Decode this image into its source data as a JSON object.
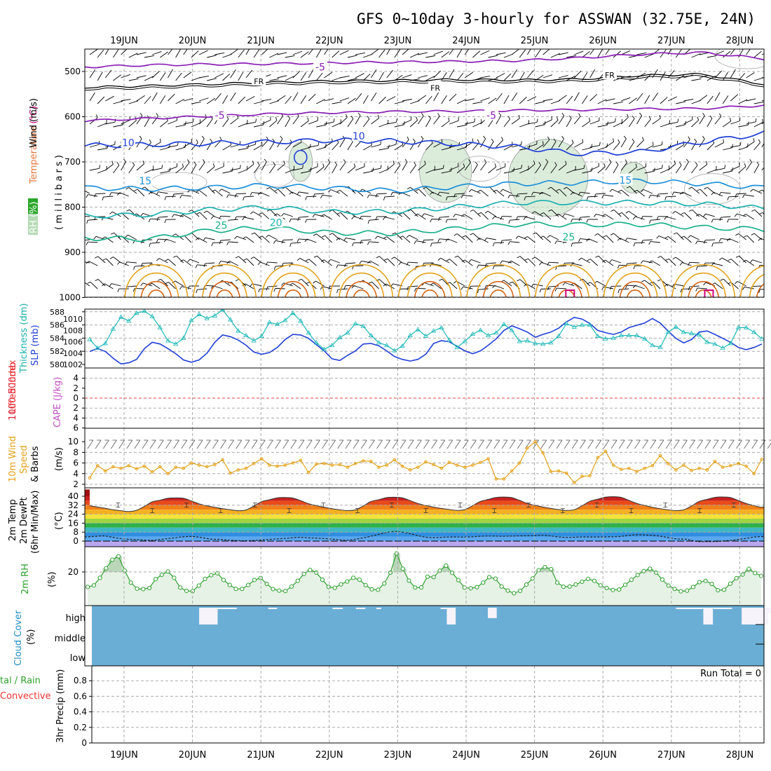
{
  "title": "GFS 0~10day 3-hourly for ASSWAN (32.75E, 24N)",
  "days": [
    "19JUN",
    "20JUN",
    "21JUN",
    "22JUN",
    "23JUN",
    "24JUN",
    "25JUN",
    "26JUN",
    "27JUN",
    "28JUN"
  ],
  "colors": {
    "purple": "#8a1fb5",
    "black": "#000000",
    "blue": "#1f3fd6",
    "lightblue": "#1e90d8",
    "teal": "#1cb0b0",
    "green": "#19b08a",
    "orange": "#e3a21a",
    "darkorange": "#d76514",
    "magenta": "#d4007a",
    "cloud": "#6aaed6",
    "rhfill": "#e8f3e8",
    "rhline": "#2ea02e"
  },
  "panels": {
    "upper_air": {
      "labels": {
        "rh": "RH (%)",
        "temperature": "Temperature",
        "celsius": "(°C)",
        "wind": "Wind (m/s)",
        "mb": "( m i l l i b a r s )"
      },
      "pressure_ticks": [
        500,
        600,
        700,
        800,
        900,
        1000
      ],
      "contours": [
        {
          "label": "-5",
          "color": "purple",
          "mb": [
            490,
            486,
            484,
            483,
            481,
            479,
            478,
            476,
            470,
            462,
            458,
            472
          ]
        },
        {
          "label": "FR",
          "color": "black",
          "mb": [
            535,
            532,
            528,
            524,
            521,
            520,
            518,
            519,
            517,
            509,
            506,
            528
          ]
        },
        {
          "label": "-5",
          "color": "purple",
          "mb": [
            609,
            604,
            599,
            594,
            591,
            589,
            588,
            586,
            585,
            583,
            582,
            575
          ]
        },
        {
          "label": "10",
          "color": "blue",
          "mb": [
            664,
            662,
            659,
            656,
            652,
            654,
            660,
            667,
            682,
            678,
            656,
            637
          ]
        },
        {
          "label": "15",
          "color": "lightblue",
          "mb": [
            757,
            760,
            757,
            752,
            758,
            764,
            755,
            748,
            746,
            742,
            748,
            757
          ]
        },
        {
          "label": "20",
          "color": "teal",
          "mb": [
            820,
            817,
            806,
            800,
            811,
            810,
            800,
            790,
            790,
            790,
            793,
            803
          ]
        },
        {
          "label": "25",
          "color": "green",
          "mb": [
            868,
            871,
            852,
            846,
            857,
            858,
            848,
            838,
            839,
            838,
            845,
            849
          ]
        }
      ],
      "contour_labels": [
        {
          "text": "-5",
          "day": 2.87,
          "mb": 490,
          "color": "purple"
        },
        {
          "text": "FR",
          "day": 1.97,
          "mb": 520,
          "color": "black"
        },
        {
          "text": "FR",
          "day": 4.55,
          "mb": 535,
          "color": "black"
        },
        {
          "text": "FR",
          "day": 7.1,
          "mb": 506,
          "color": "black"
        },
        {
          "text": "-5",
          "day": 1.4,
          "mb": 597,
          "color": "purple"
        },
        {
          "text": "-5",
          "day": 5.37,
          "mb": 597,
          "color": "purple"
        },
        {
          "text": "10",
          "day": 0.06,
          "mb": 657,
          "color": "blue"
        },
        {
          "text": "10",
          "day": 3.43,
          "mb": 643,
          "color": "blue"
        },
        {
          "text": "15",
          "day": 0.31,
          "mb": 742,
          "color": "lightblue"
        },
        {
          "text": "15",
          "day": 7.33,
          "mb": 740,
          "color": "lightblue"
        },
        {
          "text": "20",
          "day": 2.22,
          "mb": 834,
          "color": "teal"
        },
        {
          "text": "25",
          "day": 1.42,
          "mb": 840,
          "color": "green"
        },
        {
          "text": "25",
          "day": 6.5,
          "mb": 866,
          "color": "green"
        }
      ]
    },
    "thickness_slp": {
      "labels": {
        "thickness": "1000-500mb",
        "thickness2": "Thickness (dm)",
        "slp": "SLP (mb)"
      },
      "thickness_ticks": [
        580,
        582,
        584,
        586,
        588
      ],
      "slp_ticks": [
        1002,
        1004,
        1006,
        1008,
        1010
      ],
      "thickness_dm": [
        583.8,
        582.5,
        583.2,
        585.4,
        587.2,
        586.6,
        587.8,
        588.1,
        587.3,
        585.6,
        583.6,
        583.1,
        584.0,
        586.7,
        587.6,
        587.0,
        587.4,
        588.3,
        586.8,
        585.1,
        584.4,
        583.6,
        584.3,
        586.4,
        586.1,
        586.7,
        587.8,
        586.6,
        584.8,
        583.3,
        582.3,
        582.9,
        584.1,
        584.8,
        586.2,
        585.8,
        584.4,
        583.3,
        582.9,
        582.1,
        582.8,
        584.4,
        585.3,
        584.3,
        585.1,
        585.6,
        583.7,
        582.6,
        583.5,
        584.6,
        585.2,
        584.4,
        584.8,
        586.1,
        585.2,
        583.5,
        583.6,
        583.2,
        583.1,
        583.3,
        584.3,
        586.2,
        585.7,
        586.0,
        586.0,
        584.3,
        583.9,
        584.0,
        584.4,
        584.4,
        584.4,
        583.9,
        582.9,
        582.6,
        584.9,
        585.7,
        584.9,
        584.7,
        584.5,
        583.4,
        583.1,
        582.5,
        583.2,
        585.6,
        585.6,
        584.9,
        583.9
      ],
      "slp_mb": [
        1004.3,
        1004.8,
        1004.3,
        1003.1,
        1002.1,
        1002.3,
        1002.9,
        1004.8,
        1005.9,
        1005.6,
        1004.8,
        1003.9,
        1002.8,
        1002.4,
        1002.8,
        1004.0,
        1005.9,
        1007.2,
        1006.9,
        1006.3,
        1005.4,
        1004.2,
        1003.8,
        1004.1,
        1005.0,
        1006.4,
        1007.3,
        1007.2,
        1006.6,
        1005.5,
        1004.4,
        1003.0,
        1002.7,
        1003.6,
        1004.4,
        1005.6,
        1005.7,
        1005.3,
        1004.4,
        1003.4,
        1002.9,
        1002.6,
        1002.9,
        1003.8,
        1005.7,
        1006.2,
        1006.0,
        1005.2,
        1004.4,
        1003.9,
        1004.4,
        1005.4,
        1006.5,
        1008.0,
        1008.8,
        1008.3,
        1007.7,
        1006.8,
        1007.3,
        1007.7,
        1008.4,
        1009.5,
        1010.3,
        1010.0,
        1009.2,
        1008.0,
        1007.6,
        1007.3,
        1007.7,
        1008.5,
        1008.9,
        1009.3,
        1010.1,
        1009.3,
        1007.9,
        1006.6,
        1005.8,
        1006.4,
        1007.7,
        1007.9,
        1007.3,
        1006.6,
        1005.9,
        1005.0,
        1004.6,
        1005.0,
        1005.6
      ]
    },
    "stability": {
      "labels": {
        "li": "Lifted Index",
        "cape": "CAPE (J/kg)"
      },
      "li_ticks": [
        -4,
        -2,
        0,
        2,
        4,
        6
      ],
      "li_tick_labels": [
        "4",
        "2",
        "0",
        "2",
        "4",
        "6"
      ]
    },
    "wind10m": {
      "labels": {
        "wind": "10m Wind",
        "speed": "Speed",
        "barbs": "& Barbs",
        "unit": "(m/s)"
      },
      "ticks": [
        2,
        4,
        6,
        8,
        10
      ],
      "speed_ms": [
        3.2,
        5.5,
        4.5,
        5.3,
        5.0,
        5.5,
        4.9,
        5.4,
        4.3,
        5.3,
        4.0,
        5.2,
        5.0,
        6.0,
        5.6,
        5.3,
        5.7,
        6.6,
        4.1,
        4.7,
        5.0,
        5.9,
        6.8,
        5.6,
        5.4,
        5.6,
        6.0,
        6.5,
        4.2,
        5.8,
        5.9,
        5.6,
        5.7,
        5.2,
        5.9,
        6.4,
        6.3,
        5.2,
        5.6,
        6.6,
        5.4,
        4.7,
        5.2,
        6.2,
        5.7,
        5.0,
        6.1,
        5.6,
        5.2,
        5.6,
        6.1,
        6.8,
        3.0,
        3.0,
        4.5,
        6.0,
        8.8,
        10.0,
        7.9,
        4.4,
        4.5,
        4.1,
        2.3,
        3.5,
        3.6,
        7.0,
        8.2,
        5.6,
        4.8,
        5.0,
        4.4,
        5.0,
        5.5,
        7.4,
        5.9,
        4.7,
        5.6,
        4.6,
        5.0,
        4.7,
        6.3,
        5.2,
        5.5,
        5.9,
        5.4,
        4.0,
        6.7
      ]
    },
    "temp2m": {
      "labels": {
        "temp": "2m Temp",
        "dewpt": "2m DewPt",
        "minmax": "(6hr Min/Max)",
        "unit": "(°C)"
      },
      "ticks": [
        0,
        8,
        16,
        24,
        32,
        40
      ],
      "temp_c": [
        31.5,
        30.4,
        29.2,
        28.0,
        27.1,
        26.4,
        27.5,
        31.0,
        35.0,
        36.5,
        38.2,
        38.5,
        38.2,
        35.8,
        33.2,
        31.5,
        30.1,
        28.9,
        28.0,
        27.1,
        27.8,
        31.3,
        35.2,
        36.9,
        38.6,
        38.9,
        38.4,
        36.0,
        33.4,
        31.6,
        30.2,
        28.9,
        27.9,
        27.2,
        27.9,
        31.4,
        35.3,
        37.0,
        38.8,
        39.1,
        38.6,
        36.1,
        33.5,
        31.8,
        30.3,
        29.1,
        28.2,
        27.4,
        28.1,
        31.6,
        35.4,
        37.2,
        38.9,
        39.3,
        38.8,
        36.3,
        33.6,
        31.9,
        30.4,
        29.1,
        28.1,
        27.3,
        28.0,
        31.5,
        35.5,
        37.4,
        39.2,
        39.6,
        39.0,
        36.3,
        33.6,
        31.8,
        30.2,
        28.9,
        27.9,
        27.2,
        27.9,
        31.4,
        35.4,
        37.3,
        39.0,
        39.4,
        38.8,
        36.2,
        33.5,
        31.7,
        30.2,
        32.6
      ],
      "dew_c": [
        3.6,
        4.2,
        4.6,
        3.2,
        1.9,
        1.5,
        1.0,
        0.7,
        1.7,
        2.6,
        3.7,
        4.1,
        3.2,
        1.8,
        1.5,
        0.7,
        0.3,
        0.4,
        0.9,
        1.5,
        2.1,
        2.6,
        3.4,
        3.0,
        2.6,
        2.1,
        1.4,
        0.8,
        1.9,
        3.4,
        5.4,
        7.5,
        8.6,
        7.6,
        5.6,
        3.7,
        3.1,
        3.5,
        3.7,
        3.6,
        3.9,
        4.4,
        4.5,
        4.3,
        4.5,
        4.7,
        4.8,
        5.2,
        4.6,
        3.6,
        3.3,
        3.6,
        3.7,
        3.7,
        3.8,
        4.0,
        5.0,
        5.7,
        5.3,
        4.7,
        3.4,
        2.0,
        1.6,
        -0.2,
        -0.5,
        -0.4,
        0.2,
        1.1,
        2.2,
        3.6,
        4.1
      ]
    },
    "rh2m": {
      "labels": {
        "rh": "2m RH",
        "unit": "(%)"
      },
      "ticks": [
        20
      ],
      "rh_pct": [
        13.1,
        13.8,
        17.3,
        21.7,
        25.6,
        27.2,
        20.6,
        15.1,
        12.3,
        12.1,
        12.6,
        16.7,
        18.7,
        20.2,
        17.3,
        12.8,
        11.3,
        11.2,
        13.7,
        16.8,
        18.5,
        19.4,
        16.3,
        14.0,
        12.2,
        12.2,
        14.0,
        16.3,
        17.2,
        14.5,
        12.1,
        11.4,
        11.2,
        13.3,
        15.9,
        19.1,
        20.9,
        19.7,
        16.4,
        13.1,
        12.7,
        14.3,
        15.6,
        17.3,
        16.4,
        13.9,
        12.0,
        11.8,
        14.7,
        19.7,
        28.5,
        21.5,
        16.0,
        12.8,
        12.9,
        17.8,
        17.6,
        20.6,
        22.9,
        19.6,
        16.2,
        12.8,
        12.5,
        13.0,
        15.1,
        17.6,
        16.9,
        13.3,
        11.4,
        10.2,
        11.3,
        14.2,
        17.0,
        20.8,
        22.2,
        21.3,
        15.1,
        13.2,
        13.3,
        14.2,
        15.5,
        16.8,
        15.9,
        13.8,
        12.6,
        11.7,
        11.9,
        14.1,
        16.4,
        18.6,
        20.4,
        21.5,
        19.7,
        16.5,
        13.7,
        12.2,
        11.1,
        11.4,
        13.1,
        15.3,
        15.9,
        14.5,
        11.6,
        11.8,
        14.6,
        17.1,
        18.8,
        21.4,
        19.5,
        18.2
      ]
    },
    "cloud": {
      "labels": {
        "title": "Cloud Cover",
        "unit": "(%)",
        "high": "high",
        "middle": "middle",
        "low": "low"
      },
      "high_gaps": [
        {
          "day": 1.61,
          "width": 0.27,
          "depth": 1.0
        },
        {
          "day": 1.88,
          "width": 0.28,
          "depth": 0.05
        },
        {
          "day": 2.62,
          "width": 0.13,
          "depth": 0.05
        },
        {
          "day": 3.56,
          "width": 0.15,
          "depth": 0.05
        },
        {
          "day": 3.9,
          "width": 0.14,
          "depth": 0.05
        },
        {
          "day": 4.2,
          "width": 0.07,
          "depth": 0.05
        },
        {
          "day": 5.14,
          "width": 0.09,
          "depth": 0.05
        },
        {
          "day": 5.23,
          "width": 0.13,
          "depth": 1.0
        },
        {
          "day": 5.83,
          "width": 0.13,
          "depth": 0.62
        },
        {
          "day": 8.58,
          "width": 0.4,
          "depth": 0.05
        },
        {
          "day": 8.98,
          "width": 0.14,
          "depth": 1.0
        },
        {
          "day": 9.12,
          "width": 0.28,
          "depth": 0.05
        },
        {
          "day": 9.54,
          "width": 0.39,
          "depth": 1.0
        },
        {
          "day": 9.93,
          "width": 0.14,
          "depth": 0.32
        },
        {
          "day": 10.07,
          "width": 0.12,
          "depth": 0.16
        },
        {
          "day": 10.19,
          "width": 0.12,
          "depth": 0.08
        }
      ]
    },
    "precip": {
      "labels": {
        "total": "tal / Rain",
        "convective": "Convective",
        "unit": "3hr Precip (mm)"
      },
      "ticks": [
        0,
        0.2,
        0.4,
        0.6,
        0.8
      ],
      "tick_labels": [
        "0",
        "0.2",
        "0.4",
        "0.6",
        "0.8"
      ],
      "run_total": "Run Total = 0"
    }
  }
}
